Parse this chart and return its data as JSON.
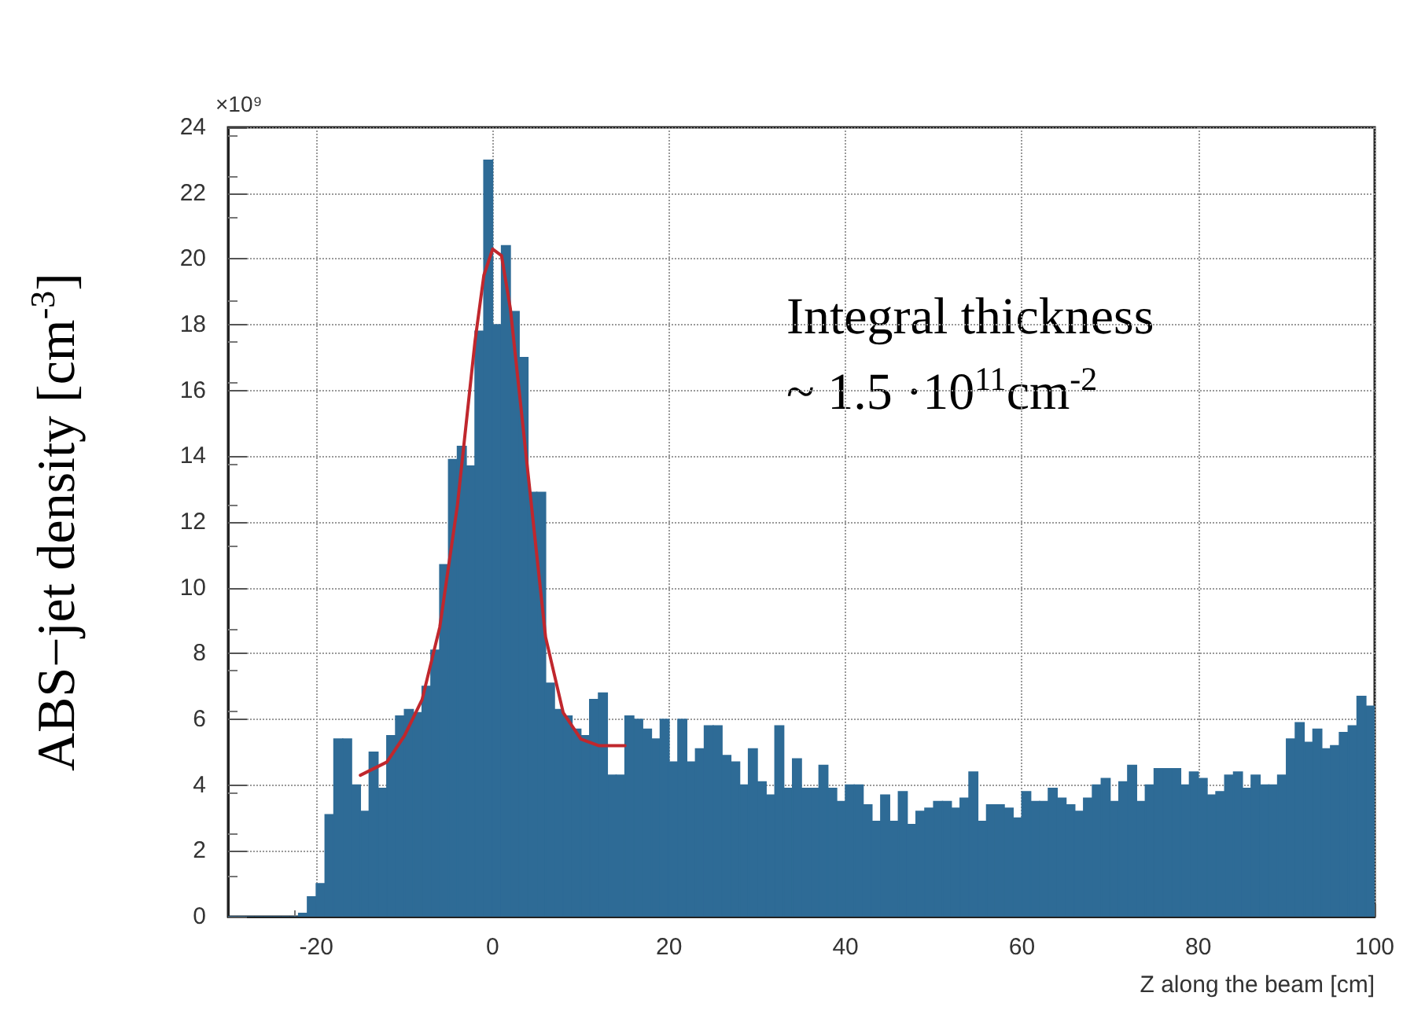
{
  "chart_data": {
    "type": "histogram",
    "xlabel": "Z along the beam [cm]",
    "ylabel": "ABS−jet density [cm$^{-3}$]",
    "annotations": [
      "×10⁹",
      "Integral thickness\n~ 1.5 ·10$^{11}$cm$^{-2}$"
    ],
    "bins": [
      -30,
      -29,
      -28,
      -27,
      -26,
      -25,
      -24,
      -23,
      -22,
      -21,
      -20,
      -19,
      -18,
      -17,
      -16,
      -15,
      -14,
      -13,
      -12,
      -11,
      -10,
      -9,
      -8,
      -7,
      -6,
      -5,
      -4,
      -3,
      -2,
      -1,
      0,
      1,
      2,
      3,
      4,
      5,
      6,
      7,
      8,
      9,
      10,
      11,
      12,
      13,
      14,
      15,
      16,
      17,
      18,
      19,
      20,
      21,
      22,
      23,
      24,
      25,
      26,
      27,
      28,
      29,
      30,
      31,
      32,
      33,
      34,
      35,
      36,
      37,
      38,
      39,
      40,
      41,
      42,
      43,
      44,
      45,
      46,
      47,
      48,
      49,
      50,
      51,
      52,
      53,
      54,
      55,
      56,
      57,
      58,
      59,
      60,
      61,
      62,
      63,
      64,
      65,
      66,
      67,
      68,
      69,
      70,
      71,
      72,
      73,
      74,
      75,
      76,
      77,
      78,
      79,
      80,
      81,
      82,
      83,
      84,
      85,
      86,
      87,
      88,
      89,
      90,
      91,
      92,
      93,
      94,
      95,
      96,
      97,
      98,
      99,
      100
    ],
    "series": [
      {
        "color": "#2e6b96",
        "values": [
          0,
          0,
          0,
          0,
          0,
          0,
          0,
          0,
          0.1,
          0.6,
          1.0,
          3.1,
          5.4,
          5.4,
          4.0,
          3.2,
          5.0,
          3.9,
          5.5,
          6.1,
          6.3,
          6.2,
          7.0,
          8.1,
          10.7,
          13.9,
          14.3,
          13.7,
          17.8,
          23.0,
          18.0,
          20.4,
          18.4,
          17.0,
          12.9,
          12.9,
          7.1,
          6.3,
          6.1,
          5.7,
          5.5,
          6.6,
          6.8,
          4.3,
          4.3,
          6.1,
          6.0,
          5.7,
          5.4,
          6.0,
          4.7,
          6.0,
          4.7,
          5.1,
          5.8,
          5.8,
          4.9,
          4.7,
          4.0,
          5.1,
          4.1,
          3.7,
          5.8,
          3.9,
          4.8,
          3.9,
          3.9,
          4.6,
          3.9,
          3.5,
          4.0,
          4.0,
          3.4,
          2.9,
          3.7,
          2.9,
          3.8,
          2.8,
          3.2,
          3.3,
          3.5,
          3.5,
          3.3,
          3.6,
          4.4,
          2.9,
          3.4,
          3.4,
          3.3,
          3.0,
          3.8,
          3.5,
          3.5,
          3.9,
          3.6,
          3.4,
          3.2,
          3.6,
          4.0,
          4.2,
          3.5,
          4.1,
          4.6,
          3.5,
          4.0,
          4.5,
          4.5,
          4.5,
          4.0,
          4.4,
          4.2,
          3.7,
          3.8,
          4.3,
          4.4,
          3.9,
          4.3,
          4.0,
          4.0,
          4.3,
          5.4,
          5.9,
          5.3,
          5.7,
          5.1,
          5.2,
          5.6,
          5.8,
          6.7,
          6.4
        ]
      },
      {
        "type": "line",
        "color": "#c0272d",
        "x": [
          -15,
          -12,
          -10,
          -8,
          -6,
          -4,
          -2,
          -1,
          0,
          1,
          2,
          4,
          6,
          8,
          10,
          12,
          15
        ],
        "values": [
          4.3,
          4.7,
          5.5,
          6.6,
          8.8,
          12.5,
          17.5,
          19.5,
          20.3,
          20.1,
          18.5,
          13.5,
          8.5,
          6.2,
          5.4,
          5.2,
          5.2
        ]
      }
    ],
    "xlim": [
      -30,
      100
    ],
    "xticks": [
      -20,
      0,
      20,
      40,
      60,
      80,
      100
    ],
    "ylim": [
      0,
      24
    ],
    "yticks": [
      0,
      2,
      4,
      6,
      8,
      10,
      12,
      14,
      16,
      18,
      20,
      22,
      24
    ],
    "grid": true,
    "marker": "none",
    "line_style": "solid"
  }
}
